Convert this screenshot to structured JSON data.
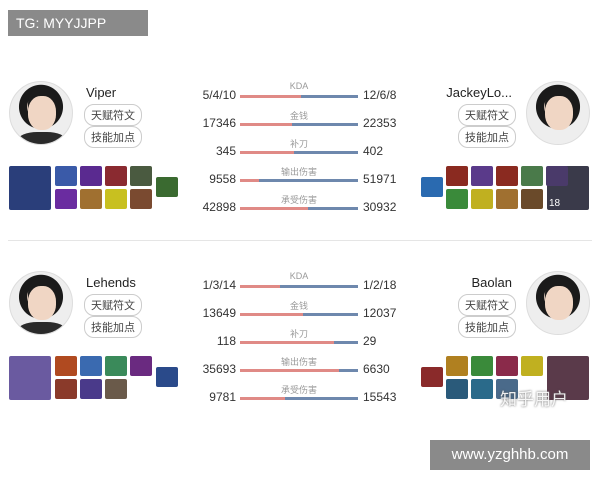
{
  "overlay_top": "TG: MYYJJPP",
  "overlay_bottom": "www.yzghhb.com",
  "watermark": "知乎用户",
  "buttons": {
    "runes": "天赋符文",
    "skills": "技能加点"
  },
  "colors": {
    "left_bar": "#e08a86",
    "right_bar": "#6e88ad"
  },
  "matchups": [
    {
      "left_player": "Viper",
      "right_player": "JackeyLo...",
      "stats": [
        {
          "label": "KDA",
          "left": "5/4/10",
          "right": "12/6/8",
          "left_share": 0.52
        },
        {
          "label": "金钱",
          "left": "17346",
          "right": "22353",
          "left_share": 0.44
        },
        {
          "label": "补刀",
          "left": "345",
          "right": "402",
          "left_share": 0.46
        },
        {
          "label": "输出伤害",
          "left": "9558",
          "right": "51971",
          "left_share": 0.16
        },
        {
          "label": "承受伤害",
          "left": "42898",
          "right": "30932",
          "left_share": 0.58
        }
      ],
      "left_items": [
        "#3a5aa8",
        "#6a2ca0",
        "#5a2a90",
        "#a07030",
        "#8a2a30",
        "#c8c020",
        "#4a5a40",
        "#7a4a30",
        "#3a6a30"
      ],
      "left_champ": "#2a3e7a",
      "right_champ": "#3a3a4a",
      "right_items": [
        "#2a6ab0",
        "#8a2a20",
        "#3a8a3a",
        "#5a3a8a",
        "#c0b020",
        "#8a2a20",
        "#a07030",
        "#4a7a4a",
        "#6a4a2a",
        "#4a3a6a"
      ],
      "right_level": "18"
    },
    {
      "left_player": "Lehends",
      "right_player": "Baolan",
      "stats": [
        {
          "label": "KDA",
          "left": "1/3/14",
          "right": "1/2/18",
          "left_share": 0.34
        },
        {
          "label": "金钱",
          "left": "13649",
          "right": "12037",
          "left_share": 0.53
        },
        {
          "label": "补刀",
          "left": "118",
          "right": "29",
          "left_share": 0.8
        },
        {
          "label": "输出伤害",
          "left": "35693",
          "right": "6630",
          "left_share": 0.84
        },
        {
          "label": "承受伤害",
          "left": "9781",
          "right": "15543",
          "left_share": 0.38
        }
      ],
      "left_items": [
        "#b04a20",
        "#8a3a2a",
        "#3a6ab0",
        "#4a3a8a",
        "#3a8a5a",
        "#6a5a4a",
        "#6a2a80",
        "#2a4a8a"
      ],
      "left_champ": "#6a5aa0",
      "right_champ": "#5a3a4a",
      "right_items": [
        "#8a2a2a",
        "#b08020",
        "#2a5a7a",
        "#3a8a3a",
        "#2a6a8a",
        "#8a2a4a",
        "#4a6a8a",
        "#c0b020"
      ]
    }
  ]
}
